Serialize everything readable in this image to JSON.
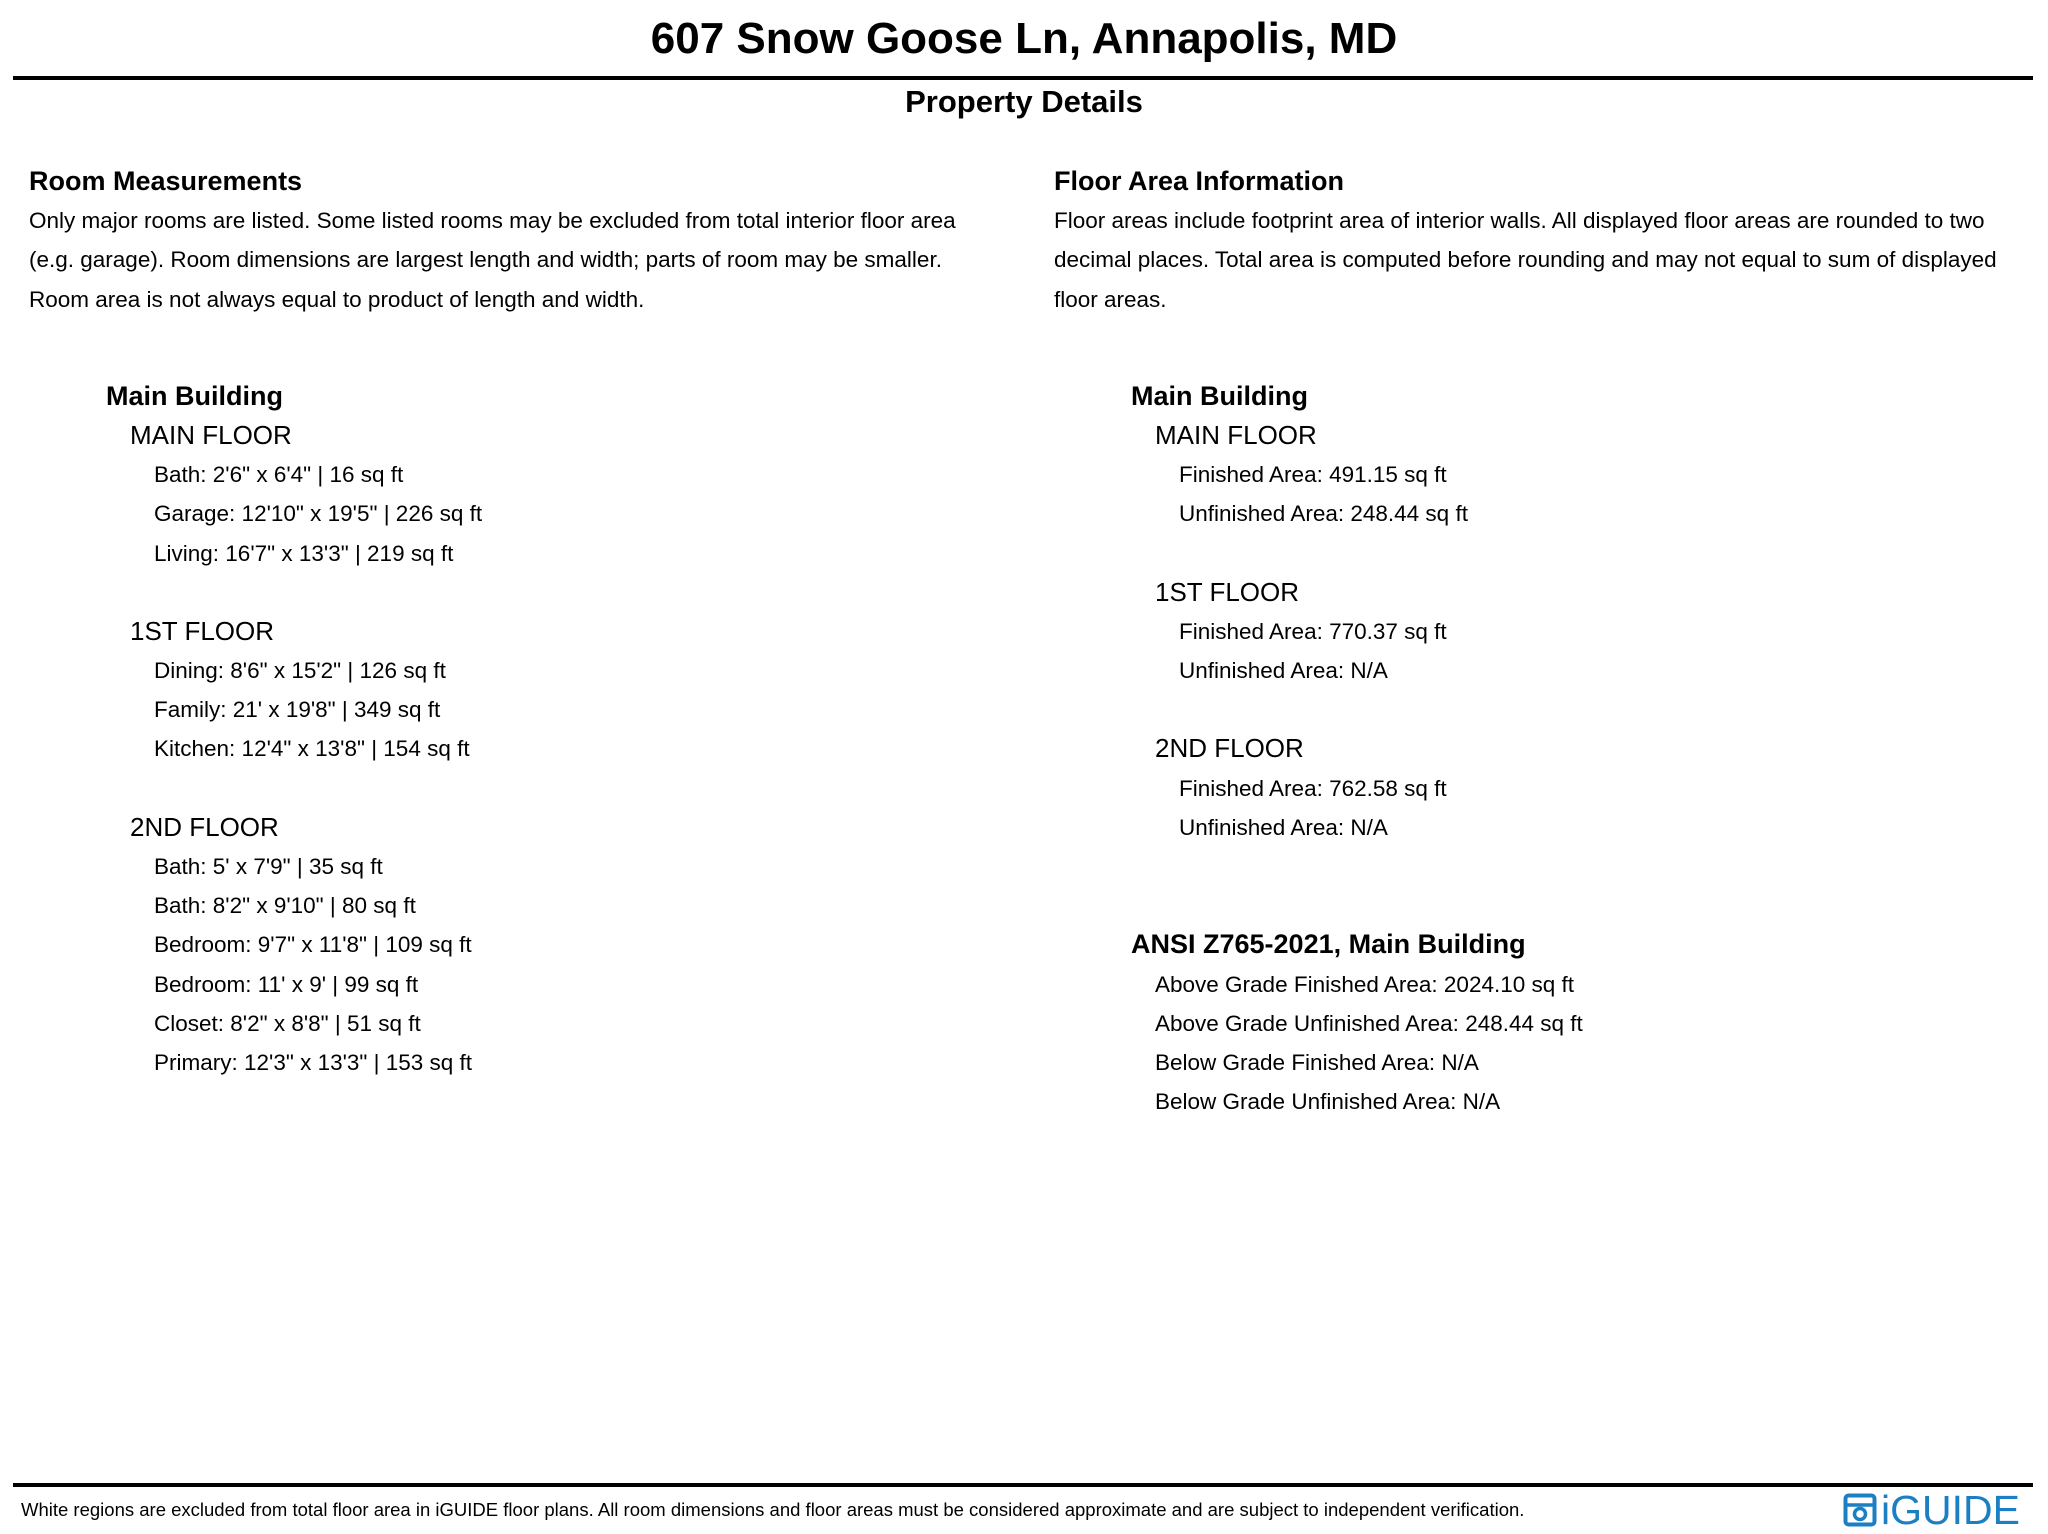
{
  "header": {
    "title": "607 Snow Goose Ln, Annapolis, MD",
    "subtitle": "Property Details"
  },
  "room_measurements": {
    "heading": "Room Measurements",
    "description_lines": [
      "Only major rooms are listed. Some listed rooms may be excluded from total interior floor area",
      "(e.g. garage). Room dimensions are largest length and width; parts of room may be smaller.",
      "Room area is not always equal to product of length and width."
    ],
    "building": "Main Building",
    "floors": [
      {
        "name": "MAIN FLOOR",
        "rooms": [
          "Bath: 2'6\" x 6'4\" | 16 sq ft",
          "Garage: 12'10\" x 19'5\" | 226 sq ft",
          "Living: 16'7\" x 13'3\" | 219 sq ft"
        ]
      },
      {
        "name": "1ST FLOOR",
        "rooms": [
          "Dining: 8'6\" x 15'2\" | 126 sq ft",
          "Family: 21' x 19'8\" | 349 sq ft",
          "Kitchen: 12'4\" x 13'8\" | 154 sq ft"
        ]
      },
      {
        "name": "2ND FLOOR",
        "rooms": [
          "Bath: 5' x 7'9\" | 35 sq ft",
          "Bath: 8'2\" x 9'10\" | 80 sq ft",
          "Bedroom: 9'7\" x 11'8\" | 109 sq ft",
          "Bedroom: 11' x 9' | 99 sq ft",
          "Closet: 8'2\" x 8'8\" | 51 sq ft",
          "Primary: 12'3\" x 13'3\" | 153 sq ft"
        ]
      }
    ]
  },
  "floor_area": {
    "heading": "Floor Area Information",
    "description_lines": [
      "Floor areas include footprint area of interior walls. All displayed floor areas are rounded to two",
      "decimal places. Total area is computed before rounding and may not equal to sum of displayed",
      "floor areas."
    ],
    "building": "Main Building",
    "floors": [
      {
        "name": "MAIN FLOOR",
        "items": [
          "Finished Area: 491.15 sq ft",
          "Unfinished Area: 248.44 sq ft"
        ]
      },
      {
        "name": "1ST FLOOR",
        "items": [
          "Finished Area: 770.37 sq ft",
          "Unfinished Area: N/A"
        ]
      },
      {
        "name": "2ND FLOOR",
        "items": [
          "Finished Area: 762.58 sq ft",
          "Unfinished Area: N/A"
        ]
      }
    ],
    "ansi": {
      "heading": "ANSI Z765-2021, Main Building",
      "items": [
        "Above Grade Finished Area: 2024.10 sq ft",
        "Above Grade Unfinished Area: 248.44 sq ft",
        "Below Grade Finished Area: N/A",
        "Below Grade Unfinished Area: N/A"
      ]
    }
  },
  "footer": {
    "disclaimer": "White regions are excluded from total floor area in iGUIDE floor plans. All room dimensions and floor areas must be considered approximate and are subject to independent verification.",
    "logo_text": "iGUIDE",
    "logo_color": "#1b7fc3"
  }
}
